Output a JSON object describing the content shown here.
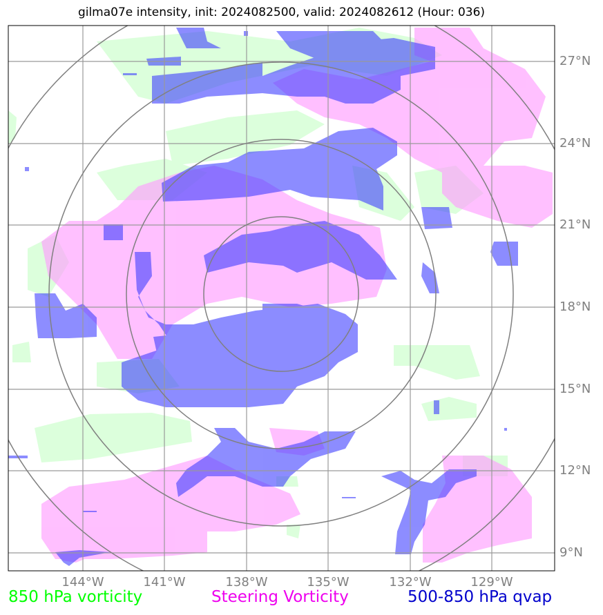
{
  "title": "gilma07e intensity, init: 2024082500, valid: 2024082612 (Hour: 036)",
  "lat_labels": [
    "27°N",
    "24°N",
    "21°N",
    "18°N",
    "15°N",
    "12°N",
    "9°N"
  ],
  "lon_labels": [
    "144°W",
    "141°W",
    "138°W",
    "135°W",
    "132°W",
    "129°W"
  ],
  "legend": {
    "vort850": {
      "label": "850 hPa vorticity",
      "color": "#00ff00"
    },
    "steering": {
      "label": "Steering Vorticity",
      "color": "#ee00ee"
    },
    "qvap": {
      "label": "500-850 hPa qvap",
      "color": "#0000cc"
    }
  },
  "colors": {
    "vort850_fill": "#ccffcc",
    "steering_fill": "#ff99ff",
    "qvap_fill": "#0000ff",
    "grid": "#999999",
    "rings": "#808080",
    "labels": "#808080"
  }
}
